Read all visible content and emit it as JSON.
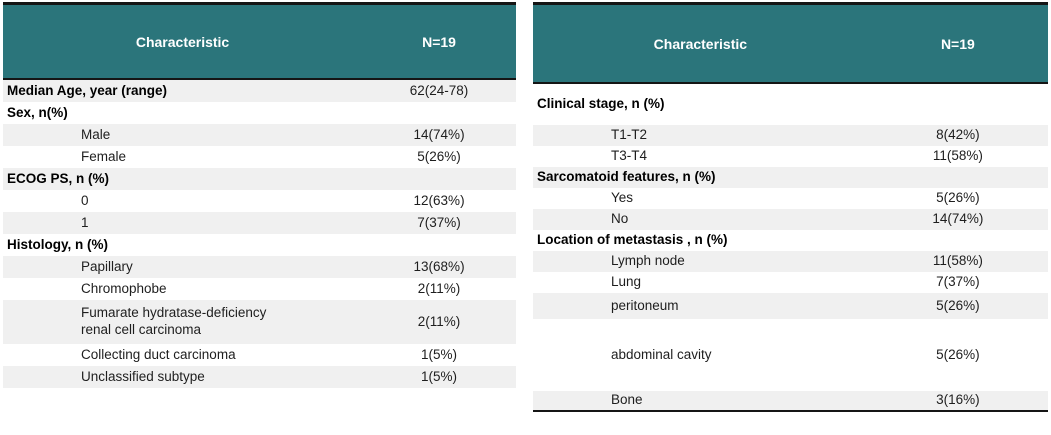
{
  "colors": {
    "header_bg": "#2B757B",
    "header_text": "#FFFFFF",
    "row_stripe": "#F0F0F0",
    "row_plain": "#FFFFFF",
    "border": "#151515",
    "text": "#1E1E1E"
  },
  "tables": [
    {
      "id": "baseline-characteristics-left",
      "header": {
        "characteristic": "Characteristic",
        "n": "N=19"
      },
      "rows": [
        {
          "label": "Median Age, year (range)",
          "value": "62(24-78)",
          "kind": "category",
          "shade": true
        },
        {
          "label": "Sex, n(%)",
          "value": "",
          "kind": "category",
          "shade": false
        },
        {
          "label": "Male",
          "value": "14(74%)",
          "kind": "item",
          "shade": true
        },
        {
          "label": "Female",
          "value": "5(26%)",
          "kind": "item",
          "shade": false
        },
        {
          "label": "ECOG PS, n (%)",
          "value": "",
          "kind": "category",
          "shade": true
        },
        {
          "label": "0",
          "value": "12(63%)",
          "kind": "item",
          "shade": false
        },
        {
          "label": "1",
          "value": "7(37%)",
          "kind": "item",
          "shade": true
        },
        {
          "label": "Histology, n (%)",
          "value": "",
          "kind": "category",
          "shade": false
        },
        {
          "label": "Papillary",
          "value": "13(68%)",
          "kind": "item",
          "shade": true
        },
        {
          "label": "Chromophobe",
          "value": "2(11%)",
          "kind": "item",
          "shade": false
        },
        {
          "label": "Fumarate hydratase-deficiency\nrenal cell carcinoma",
          "value": "2(11%)",
          "kind": "item",
          "shade": true,
          "size": "double"
        },
        {
          "label": "Collecting duct carcinoma",
          "value": "1(5%)",
          "kind": "item",
          "shade": false
        },
        {
          "label": "Unclassified subtype",
          "value": "1(5%)",
          "kind": "item",
          "shade": true
        }
      ]
    },
    {
      "id": "baseline-characteristics-right",
      "header": {
        "characteristic": "Characteristic",
        "n": "N=19"
      },
      "rows": [
        {
          "label": "Clinical stage, n (%)",
          "value": "",
          "kind": "category",
          "shade": false,
          "size": "tall"
        },
        {
          "label": "T1-T2",
          "value": "8(42%)",
          "kind": "item",
          "shade": true
        },
        {
          "label": "T3-T4",
          "value": "11(58%)",
          "kind": "item",
          "shade": false
        },
        {
          "label": "Sarcomatoid features, n (%)",
          "value": "",
          "kind": "category",
          "shade": true
        },
        {
          "label": "Yes",
          "value": "5(26%)",
          "kind": "item",
          "shade": false
        },
        {
          "label": "No",
          "value": "14(74%)",
          "kind": "item",
          "shade": true
        },
        {
          "label": "Location of metastasis , n (%)",
          "value": "",
          "kind": "category",
          "shade": false
        },
        {
          "label": "Lymph node",
          "value": "11(58%)",
          "kind": "item",
          "shade": true
        },
        {
          "label": "Lung",
          "value": "7(37%)",
          "kind": "item",
          "shade": false
        },
        {
          "label": "peritoneum",
          "value": "5(26%)",
          "kind": "item",
          "shade": true,
          "size": "lg"
        },
        {
          "label": "abdominal cavity",
          "value": "5(26%)",
          "kind": "item",
          "shade": false,
          "size": "xtall"
        },
        {
          "label": "Bone",
          "value": "3(16%)",
          "kind": "item",
          "shade": true,
          "size": "sm"
        }
      ]
    }
  ]
}
